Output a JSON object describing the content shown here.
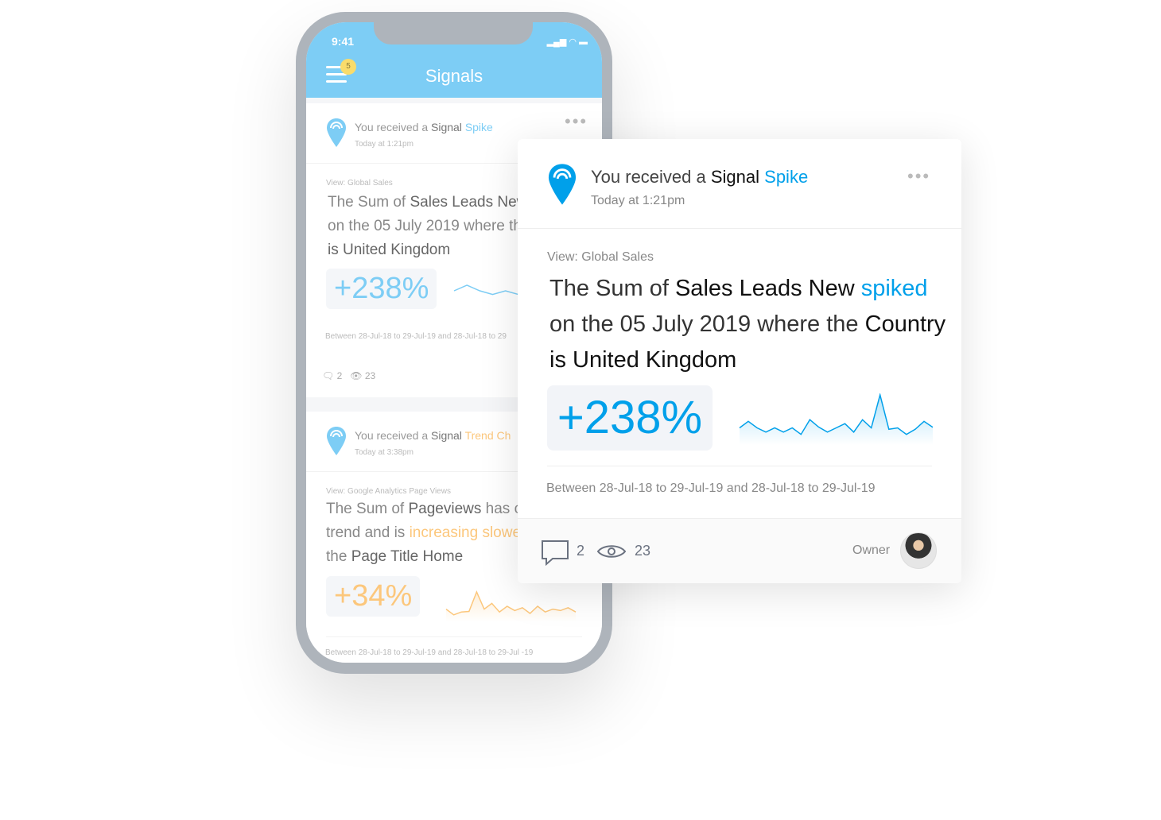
{
  "phone": {
    "time": "9:41",
    "title": "Signals",
    "badge": "5",
    "cards": [
      {
        "prefix": "You received a ",
        "signal": "Signal",
        "type": "Spike",
        "time": "Today at 1:21pm",
        "view": "View: Global Sales",
        "l1a": "The Sum of ",
        "l1b": "Sales Leads New",
        "l2": "on the 05 July 2019 where th",
        "l3": "is United Kingdom",
        "pct": "+238%",
        "range": "Between 28-Jul-18 to 29-Jul-19 and 28-Jul-18 to 29",
        "comments": "2",
        "views": "23"
      },
      {
        "prefix": "You received a ",
        "signal": "Signal",
        "type": "Trend Ch",
        "time": "Today at 3:38pm",
        "view": "View: Google Analytics Page Views",
        "l1a": "The Sum of ",
        "l1b": "Pageviews",
        "l1c": " has c",
        "l2a": "trend and is ",
        "l2b": "increasing slowe",
        "l3a": "the ",
        "l3b": "Page Title Home",
        "pct": "+34%",
        "range": "Between 28-Jul-18 to 29-Jul-19 and 28-Jul-18 to 29-Jul -19"
      }
    ]
  },
  "card": {
    "prefix": "You received a ",
    "signal": "Signal",
    "type": "Spike",
    "time": "Today at 1:21pm",
    "view": "View: Global Sales",
    "l1a": "The Sum of ",
    "l1b": "Sales Leads New",
    "l1c": "spiked",
    "l2a": "on the 05 July 2019 where the ",
    "l2b": "Country",
    "l3": "is United Kingdom",
    "pct": "+238%",
    "range": "Between 28-Jul-18 to 29-Jul-19 and 28-Jul-18 to 29-Jul-19",
    "comments": "2",
    "views": "23",
    "owner": "Owner"
  },
  "colors": {
    "accent": "#00a0ea",
    "header": "#7dcdf5",
    "trend": "#fcc77c"
  },
  "chart_data": [
    {
      "type": "area",
      "values": [
        55,
        78,
        55,
        40,
        55,
        40,
        55,
        32,
        84,
        58,
        40,
        55,
        70,
        40,
        84,
        55,
        172,
        50,
        55,
        32,
        50,
        78,
        57
      ]
    },
    {
      "type": "line",
      "values": [
        40,
        20,
        30,
        32,
        100,
        40,
        60,
        30,
        50,
        35,
        45,
        25,
        50,
        30,
        40,
        35,
        45,
        30
      ]
    }
  ]
}
